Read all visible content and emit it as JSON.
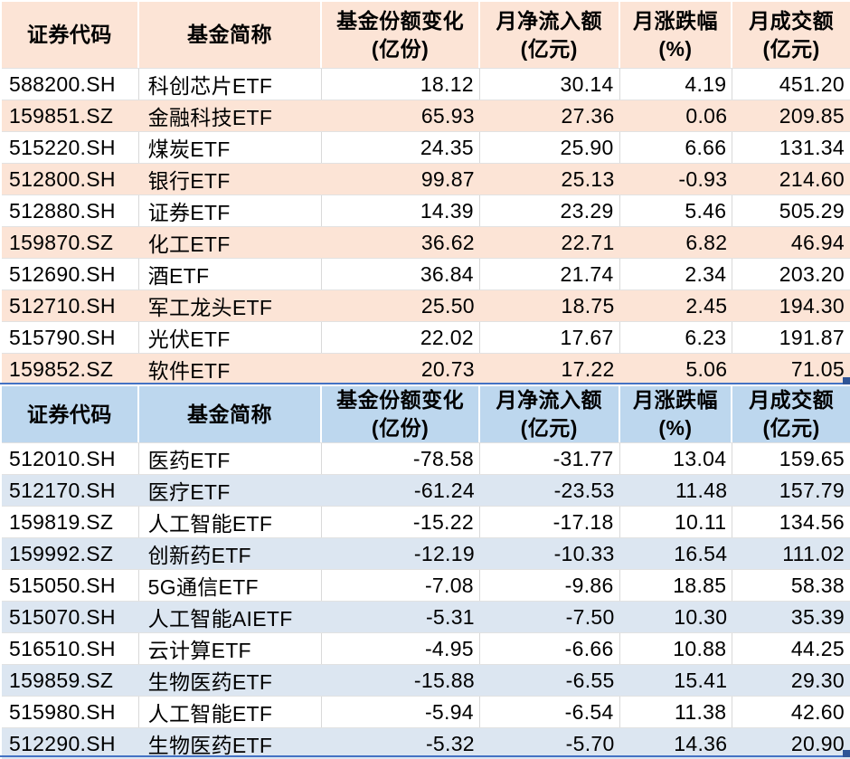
{
  "colors": {
    "orange_header": "#FCE4D6",
    "orange_stripe": "#FCE4D6",
    "blue_header": "#BDD7EE",
    "blue_stripe": "#DCE6F1",
    "grid_line": "#D9D9D9",
    "selection_border": "#4472C4",
    "selection_handle": "#2F5496",
    "text": "#000000"
  },
  "columns": [
    {
      "line1": "证券代码",
      "line2": ""
    },
    {
      "line1": "基金简称",
      "line2": ""
    },
    {
      "line1": "基金份额变化",
      "line2": "(亿份)"
    },
    {
      "line1": "月净流入额",
      "line2": "(亿元)"
    },
    {
      "line1": "月涨跌幅",
      "line2": "(%)"
    },
    {
      "line1": "月成交额",
      "line2": "(亿元)"
    }
  ],
  "tables": [
    {
      "id": "net-inflow",
      "rows": [
        [
          "588200.SH",
          "科创芯片ETF",
          "18.12",
          "30.14",
          "4.19",
          "451.20"
        ],
        [
          "159851.SZ",
          "金融科技ETF",
          "65.93",
          "27.36",
          "0.06",
          "209.85"
        ],
        [
          "515220.SH",
          "煤炭ETF",
          "24.35",
          "25.90",
          "6.66",
          "131.34"
        ],
        [
          "512800.SH",
          "银行ETF",
          "99.87",
          "25.13",
          "-0.93",
          "214.60"
        ],
        [
          "512880.SH",
          "证券ETF",
          "14.39",
          "23.29",
          "5.46",
          "505.29"
        ],
        [
          "159870.SZ",
          "化工ETF",
          "36.62",
          "22.71",
          "6.82",
          "46.94"
        ],
        [
          "512690.SH",
          "酒ETF",
          "36.84",
          "21.74",
          "2.34",
          "203.20"
        ],
        [
          "512710.SH",
          "军工龙头ETF",
          "25.50",
          "18.75",
          "2.45",
          "194.30"
        ],
        [
          "515790.SH",
          "光伏ETF",
          "22.02",
          "17.67",
          "6.23",
          "191.87"
        ],
        [
          "159852.SZ",
          "软件ETF",
          "20.73",
          "17.22",
          "5.06",
          "71.05"
        ]
      ]
    },
    {
      "id": "net-outflow",
      "rows": [
        [
          "512010.SH",
          "医药ETF",
          "-78.58",
          "-31.77",
          "13.04",
          "159.65"
        ],
        [
          "512170.SH",
          "医疗ETF",
          "-61.24",
          "-23.53",
          "11.48",
          "157.79"
        ],
        [
          "159819.SZ",
          "人工智能ETF",
          "-15.22",
          "-17.18",
          "10.11",
          "134.56"
        ],
        [
          "159992.SZ",
          "创新药ETF",
          "-12.19",
          "-10.33",
          "16.54",
          "111.02"
        ],
        [
          "515050.SH",
          "5G通信ETF",
          "-7.08",
          "-9.86",
          "18.85",
          "58.38"
        ],
        [
          "515070.SH",
          "人工智能AIETF",
          "-5.31",
          "-7.50",
          "10.30",
          "35.39"
        ],
        [
          "516510.SH",
          "云计算ETF",
          "-4.95",
          "-6.66",
          "10.88",
          "44.25"
        ],
        [
          "159859.SZ",
          "生物医药ETF",
          "-15.88",
          "-6.55",
          "15.41",
          "29.30"
        ],
        [
          "515980.SH",
          "人工智能ETF",
          "-5.94",
          "-6.54",
          "11.38",
          "42.60"
        ],
        [
          "512290.SH",
          "生物医药ETF",
          "-5.32",
          "-5.70",
          "14.36",
          "20.90"
        ]
      ]
    }
  ]
}
